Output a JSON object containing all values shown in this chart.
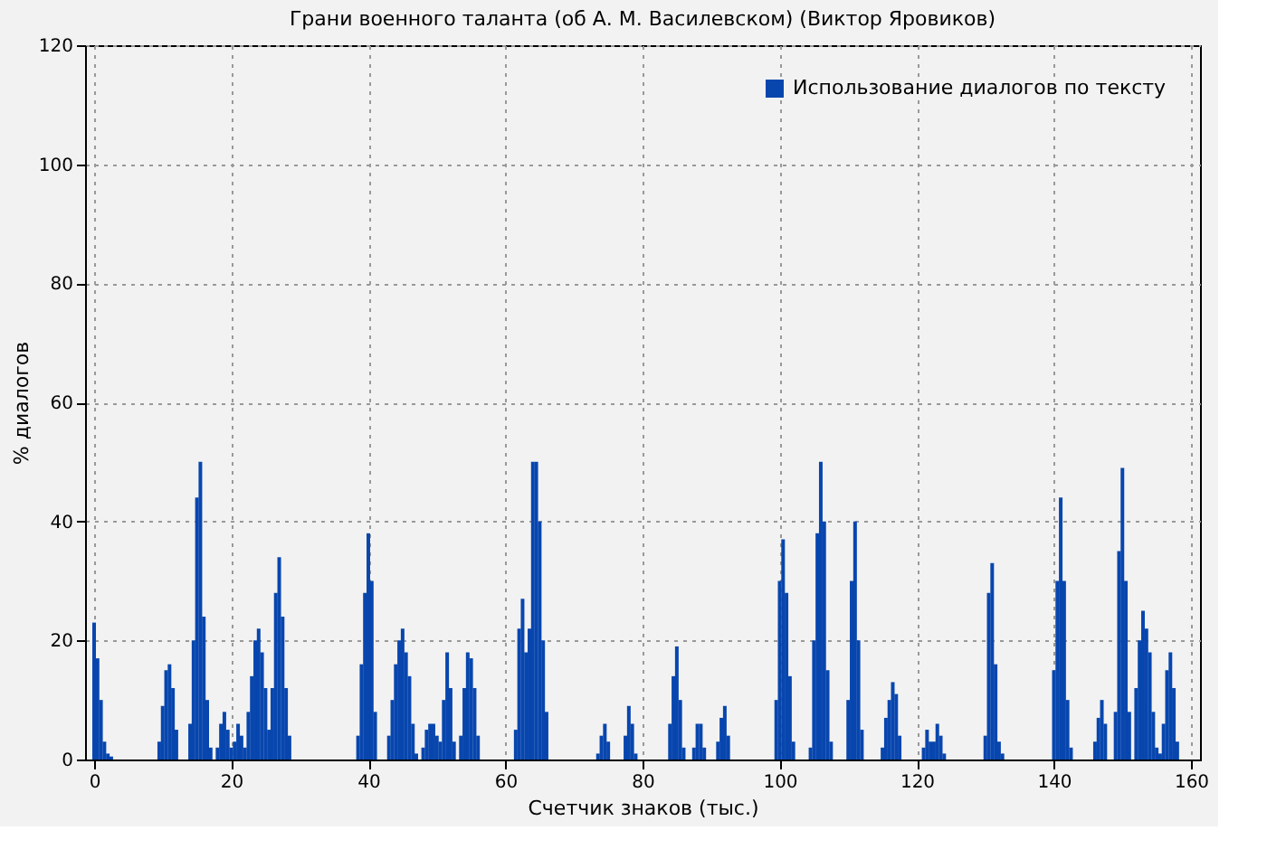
{
  "chart_data": {
    "type": "bar",
    "title": "Грани военного таланта (об А. М. Василевском) (Виктор Яровиков)",
    "xlabel": "Счетчик знаков (тыс.)",
    "ylabel": "% диалогов",
    "xlim": [
      0,
      160
    ],
    "xticks": [
      0,
      20,
      40,
      60,
      80,
      100,
      120,
      140,
      160
    ],
    "ylim": [
      0,
      120
    ],
    "yticks": [
      0,
      20,
      40,
      60,
      80,
      100,
      120
    ],
    "grid": true,
    "legend": "top right",
    "series": [
      {
        "name": "Использование диалогов по тексту",
        "color": "#0846ae",
        "x": [
          0,
          0.5,
          1,
          1.5,
          2,
          2.5,
          9.5,
          10,
          10.5,
          11,
          11.5,
          12,
          14,
          14.5,
          15,
          15.5,
          16,
          16.5,
          17,
          18,
          18.5,
          19,
          19.5,
          20,
          20.5,
          21,
          21.5,
          22,
          22.5,
          23,
          23.5,
          24,
          24.5,
          25,
          25.5,
          26,
          26.5,
          27,
          27.5,
          28,
          28.5,
          38.5,
          39,
          39.5,
          40,
          40.5,
          41,
          43,
          43.5,
          44,
          44.5,
          45,
          45.5,
          46,
          46.5,
          47,
          48,
          48.5,
          49,
          49.5,
          50,
          50.5,
          51,
          51.5,
          52,
          52.5,
          53.5,
          54,
          54.5,
          55,
          55.5,
          56,
          61.5,
          62,
          62.5,
          63,
          63.5,
          64,
          64.5,
          65,
          65.5,
          66,
          73.5,
          74,
          74.5,
          75,
          77.5,
          78,
          78.5,
          79,
          84,
          84.5,
          85,
          85.5,
          86,
          87.5,
          88,
          88.5,
          89,
          91,
          91.5,
          92,
          92.5,
          99.5,
          100,
          100.5,
          101,
          101.5,
          102,
          104.5,
          105,
          105.5,
          106,
          106.5,
          107,
          107.5,
          110,
          110.5,
          111,
          111.5,
          112,
          115,
          115.5,
          116,
          116.5,
          117,
          117.5,
          121,
          121.5,
          122,
          122.5,
          123,
          123.5,
          124,
          130,
          130.5,
          131,
          131.5,
          132,
          132.5,
          140,
          140.5,
          141,
          141.5,
          142,
          142.5,
          146,
          146.5,
          147,
          147.5,
          149,
          149.5,
          150,
          150.5,
          151,
          152,
          152.5,
          153,
          153.5,
          154,
          154.5,
          155,
          155.5,
          156,
          156.5,
          157,
          157.5,
          158
        ],
        "values": [
          23,
          17,
          10,
          3,
          1,
          0.5,
          3,
          9,
          15,
          16,
          12,
          5,
          6,
          20,
          44,
          50,
          24,
          10,
          2,
          2,
          6,
          8,
          5,
          2,
          3,
          6,
          4,
          2,
          8,
          14,
          20,
          22,
          18,
          12,
          5,
          12,
          28,
          34,
          24,
          12,
          4,
          4,
          16,
          28,
          38,
          30,
          8,
          4,
          10,
          16,
          20,
          22,
          18,
          14,
          6,
          1,
          2,
          5,
          6,
          6,
          4,
          3,
          10,
          18,
          12,
          3,
          4,
          12,
          18,
          17,
          12,
          4,
          5,
          22,
          27,
          18,
          22,
          50,
          50,
          40,
          20,
          8,
          1,
          4,
          6,
          3,
          4,
          9,
          6,
          1,
          6,
          14,
          19,
          10,
          2,
          2,
          6,
          6,
          2,
          3,
          7,
          9,
          4,
          10,
          30,
          37,
          28,
          14,
          3,
          2,
          20,
          38,
          50,
          40,
          15,
          3,
          10,
          30,
          40,
          20,
          5,
          2,
          7,
          10,
          13,
          11,
          4,
          2,
          5,
          3,
          3,
          6,
          4,
          1,
          4,
          28,
          33,
          16,
          3,
          1,
          15,
          30,
          44,
          30,
          10,
          2,
          3,
          7,
          10,
          6,
          8,
          35,
          49,
          30,
          8,
          12,
          20,
          25,
          22,
          18,
          8,
          2,
          1,
          6,
          15,
          18,
          12,
          3
        ]
      }
    ]
  }
}
